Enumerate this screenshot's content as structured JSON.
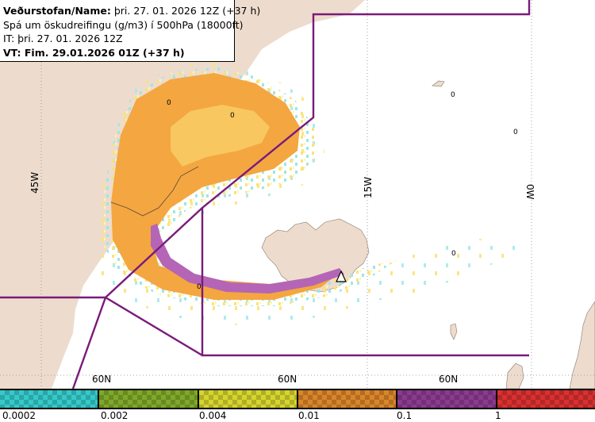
{
  "header": {
    "line1_bold": "Veðurstofan/Name:",
    "line1_rest": " þri. 27. 01. 2026 12Z (+37 h)",
    "line2": "Spá um öskudreifingu (g/m3) í 500hPa (18000ft)",
    "line3": "IT: þri. 27. 01. 2026 12Z",
    "line4": "VT: Fim. 29.01.2026 01Z (+37 h)"
  },
  "map": {
    "lon_labels": [
      "45W",
      "15W",
      "0W"
    ],
    "lat_labels": [
      "60N",
      "60N",
      "60N"
    ],
    "concentration_markers": [
      "0",
      "0",
      "0",
      "0",
      "0",
      "0"
    ],
    "volcano_icon": "triangle-volcano-icon"
  },
  "legend": {
    "thresholds": [
      "0.0002",
      "0.002",
      "0.004",
      "0.01",
      "0.1",
      "1"
    ],
    "colors": [
      "#35c9c9",
      "#7fa829",
      "#d6d42e",
      "#d9852a",
      "#8b3a8f",
      "#d93030"
    ]
  },
  "colors": {
    "land": "#eddccd",
    "sea": "#ffffff",
    "boundary": "#7a1a7a",
    "ash_orange": "#f4a641",
    "ash_purple": "#b565b5"
  }
}
